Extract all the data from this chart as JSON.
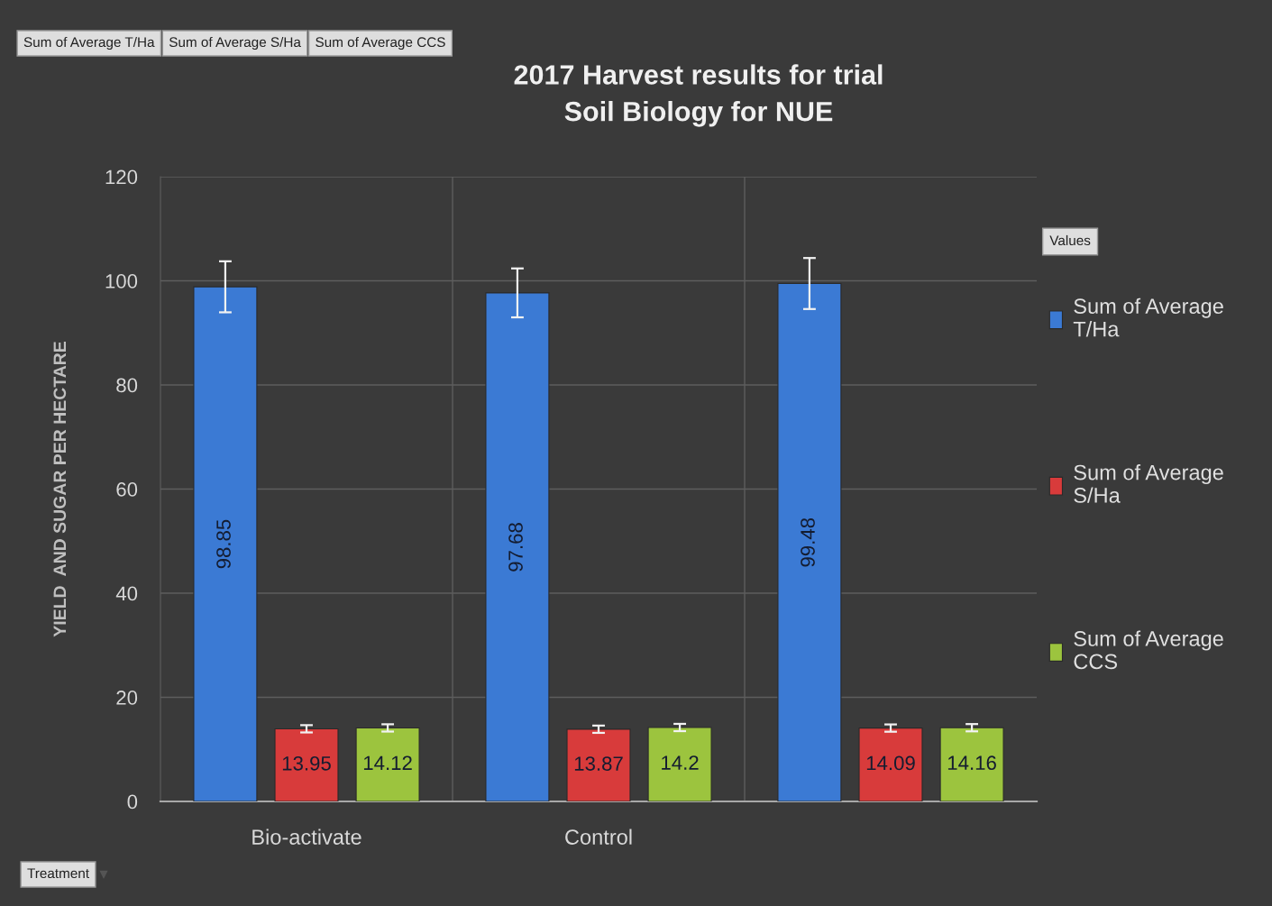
{
  "chart_data": {
    "type": "bar",
    "title": "2017 Harvest results for trial\nSoil Biology for NUE",
    "ylabel": "YIELD  AND SUGAR PER HECTARE",
    "xlabel": "Treatment",
    "legend_title": "Values",
    "annotations": [
      "Sum of Average T/Ha",
      "Sum of Average S/Ha",
      "Sum of Average CCS"
    ],
    "categories": [
      "Bio-activate",
      "Control",
      null
    ],
    "series": [
      {
        "name": "Sum of Average T/Ha",
        "color": "#3b7ad4",
        "values": [
          98.85,
          97.68,
          99.48
        ],
        "errors": [
          4.9,
          4.7,
          4.9
        ]
      },
      {
        "name": "Sum of Average S/Ha",
        "color": "#d83b3b",
        "values": [
          13.95,
          13.87,
          14.09
        ],
        "errors": [
          0.7,
          0.7,
          0.7
        ]
      },
      {
        "name": "Sum of Average CCS",
        "color": "#9cc43e",
        "values": [
          14.12,
          14.2,
          14.16
        ],
        "errors": [
          0.7,
          0.7,
          0.7
        ]
      }
    ],
    "ylim": [
      0,
      120
    ],
    "yticks": [
      0,
      20,
      40,
      60,
      80,
      100,
      120
    ],
    "grid": true,
    "legend": "right",
    "data_labels": true
  }
}
